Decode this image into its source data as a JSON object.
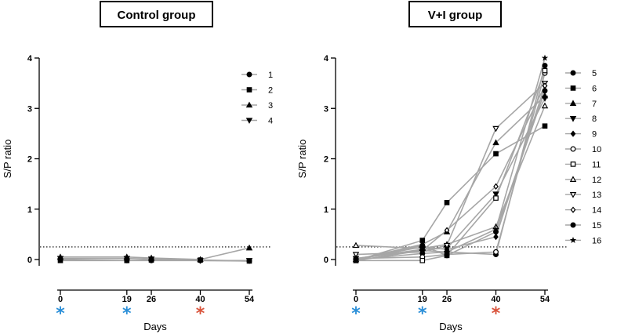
{
  "chart_data": [
    {
      "type": "line",
      "title": "Control group",
      "xlabel": "Days",
      "ylabel": "S/P ratio",
      "x": [
        0,
        19,
        26,
        40,
        54
      ],
      "ylim": [
        0,
        4
      ],
      "yticks": [
        "0",
        "1",
        "2",
        "3",
        "4"
      ],
      "xticks": [
        "0",
        "19",
        "26",
        "40",
        "54"
      ],
      "threshold": 0.25,
      "markers_under_x": [
        {
          "x": 0,
          "symbol": "*",
          "color": "#2b8fd8"
        },
        {
          "x": 19,
          "symbol": "*",
          "color": "#2b8fd8"
        },
        {
          "x": 40,
          "symbol": "*",
          "color": "#d9533b"
        }
      ],
      "line_color": "#a6a6a6",
      "legend_placement": "top-right",
      "series": [
        {
          "name": "1",
          "marker": "circle",
          "values": [
            0.0,
            -0.02,
            -0.02,
            -0.02,
            -0.03
          ]
        },
        {
          "name": "2",
          "marker": "square",
          "values": [
            -0.02,
            -0.02,
            -0.01,
            -0.01,
            -0.03
          ]
        },
        {
          "name": "3",
          "marker": "triangle-up",
          "values": [
            0.05,
            0.05,
            0.03,
            0.0,
            0.23
          ]
        },
        {
          "name": "4",
          "marker": "triangle-down",
          "values": [
            0.02,
            0.02,
            0.01,
            -0.02,
            -0.02
          ]
        }
      ]
    },
    {
      "type": "line",
      "title": "V+I group",
      "xlabel": "Days",
      "ylabel": "S/P ratio",
      "x": [
        0,
        19,
        26,
        40,
        54
      ],
      "ylim": [
        0,
        4
      ],
      "yticks": [
        "0",
        "1",
        "2",
        "3",
        "4"
      ],
      "xticks": [
        "0",
        "19",
        "26",
        "40",
        "54"
      ],
      "threshold": 0.25,
      "markers_under_x": [
        {
          "x": 0,
          "symbol": "*",
          "color": "#2b8fd8"
        },
        {
          "x": 19,
          "symbol": "*",
          "color": "#2b8fd8"
        },
        {
          "x": 40,
          "symbol": "*",
          "color": "#d9533b"
        }
      ],
      "line_color": "#a6a6a6",
      "legend_placement": "top-right",
      "series": [
        {
          "name": "5",
          "marker": "circle",
          "values": [
            0.0,
            0.12,
            0.15,
            0.1,
            3.85
          ]
        },
        {
          "name": "6",
          "marker": "square",
          "values": [
            -0.02,
            0.38,
            1.13,
            2.1,
            2.65
          ]
        },
        {
          "name": "7",
          "marker": "triangle-up",
          "values": [
            0.0,
            0.3,
            0.55,
            2.32,
            3.25
          ]
        },
        {
          "name": "8",
          "marker": "triangle-down",
          "values": [
            0.02,
            0.2,
            0.22,
            1.3,
            3.2
          ]
        },
        {
          "name": "9",
          "marker": "diamond",
          "values": [
            0.0,
            0.25,
            0.2,
            0.45,
            3.45
          ]
        },
        {
          "name": "10",
          "marker": "circle-open",
          "values": [
            0.02,
            0.05,
            0.1,
            0.15,
            3.7
          ]
        },
        {
          "name": "11",
          "marker": "square-open",
          "values": [
            -0.02,
            -0.02,
            0.08,
            1.22,
            3.75
          ]
        },
        {
          "name": "12",
          "marker": "triangle-up-open",
          "values": [
            0.28,
            0.22,
            0.3,
            0.65,
            3.05
          ]
        },
        {
          "name": "13",
          "marker": "triangle-down-open",
          "values": [
            0.1,
            0.15,
            0.28,
            2.6,
            3.5
          ]
        },
        {
          "name": "14",
          "marker": "diamond-open",
          "values": [
            0.02,
            0.18,
            0.58,
            1.45,
            3.45
          ]
        },
        {
          "name": "15",
          "marker": "circle",
          "values": [
            0.0,
            0.28,
            0.08,
            0.55,
            3.35
          ]
        },
        {
          "name": "16",
          "marker": "star",
          "values": [
            -0.02,
            0.18,
            0.15,
            0.6,
            4.0
          ]
        }
      ]
    }
  ]
}
